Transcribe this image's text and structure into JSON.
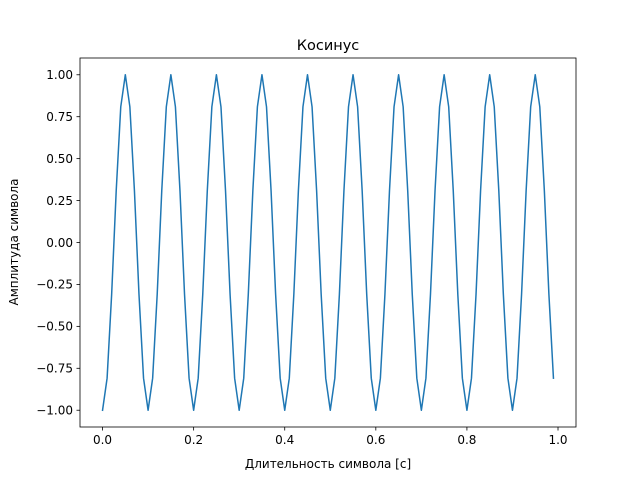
{
  "chart_data": {
    "type": "line",
    "title": "Косинус",
    "xlabel": "Длительность символа [с]",
    "ylabel": "Амплитуда символа",
    "xlim": [
      -0.0495,
      1.0395
    ],
    "ylim": [
      -1.1,
      1.1
    ],
    "xticks": [
      0.0,
      0.2,
      0.4,
      0.6,
      0.8,
      1.0
    ],
    "xtick_labels": [
      "0.0",
      "0.2",
      "0.4",
      "0.6",
      "0.8",
      "1.0"
    ],
    "yticks": [
      -1.0,
      -0.75,
      -0.5,
      -0.25,
      0.0,
      0.25,
      0.5,
      0.75,
      1.0
    ],
    "ytick_labels": [
      "−1.00",
      "−0.75",
      "−0.50",
      "−0.25",
      "0.00",
      "0.25",
      "0.50",
      "0.75",
      "1.00"
    ],
    "grid": false,
    "series": [
      {
        "color": "#1f77b4",
        "x": [
          0.0,
          0.01,
          0.02,
          0.03,
          0.04,
          0.05,
          0.06,
          0.07,
          0.08,
          0.09,
          0.1,
          0.11,
          0.12,
          0.13,
          0.14,
          0.15,
          0.16,
          0.17,
          0.18,
          0.19,
          0.2,
          0.21,
          0.22,
          0.23,
          0.24,
          0.25,
          0.26,
          0.27,
          0.28,
          0.29,
          0.3,
          0.31,
          0.32,
          0.33,
          0.34,
          0.35,
          0.36,
          0.37,
          0.38,
          0.39,
          0.4,
          0.41,
          0.42,
          0.43,
          0.44,
          0.45,
          0.46,
          0.47,
          0.48,
          0.49,
          0.5,
          0.51,
          0.52,
          0.53,
          0.54,
          0.55,
          0.56,
          0.57,
          0.58,
          0.59,
          0.6,
          0.61,
          0.62,
          0.63,
          0.64,
          0.65,
          0.66,
          0.67,
          0.68,
          0.69,
          0.7,
          0.71,
          0.72,
          0.73,
          0.74,
          0.75,
          0.76,
          0.77,
          0.78,
          0.79,
          0.8,
          0.81,
          0.82,
          0.83,
          0.84,
          0.85,
          0.86,
          0.87,
          0.88,
          0.89,
          0.9,
          0.91,
          0.92,
          0.93,
          0.94,
          0.95,
          0.96,
          0.97,
          0.98,
          0.99
        ],
        "y": [
          -1.0,
          -0.809,
          -0.309,
          0.309,
          0.809,
          1.0,
          0.809,
          0.309,
          -0.309,
          -0.809,
          -1.0,
          -0.809,
          -0.309,
          0.309,
          0.809,
          1.0,
          0.809,
          0.309,
          -0.309,
          -0.809,
          -1.0,
          -0.809,
          -0.309,
          0.309,
          0.809,
          1.0,
          0.809,
          0.309,
          -0.309,
          -0.809,
          -1.0,
          -0.809,
          -0.309,
          0.309,
          0.809,
          1.0,
          0.809,
          0.309,
          -0.309,
          -0.809,
          -1.0,
          -0.809,
          -0.309,
          0.309,
          0.809,
          1.0,
          0.809,
          0.309,
          -0.309,
          -0.809,
          -1.0,
          -0.809,
          -0.309,
          0.309,
          0.809,
          1.0,
          0.809,
          0.309,
          -0.309,
          -0.809,
          -1.0,
          -0.809,
          -0.309,
          0.309,
          0.809,
          1.0,
          0.809,
          0.309,
          -0.309,
          -0.809,
          -1.0,
          -0.809,
          -0.309,
          0.309,
          0.809,
          1.0,
          0.809,
          0.309,
          -0.309,
          -0.809,
          -1.0,
          -0.809,
          -0.309,
          0.309,
          0.809,
          1.0,
          0.809,
          0.309,
          -0.309,
          -0.809,
          -1.0,
          -0.809,
          -0.309,
          0.309,
          0.809,
          1.0,
          0.809,
          0.309,
          -0.309,
          -0.809
        ]
      }
    ]
  }
}
